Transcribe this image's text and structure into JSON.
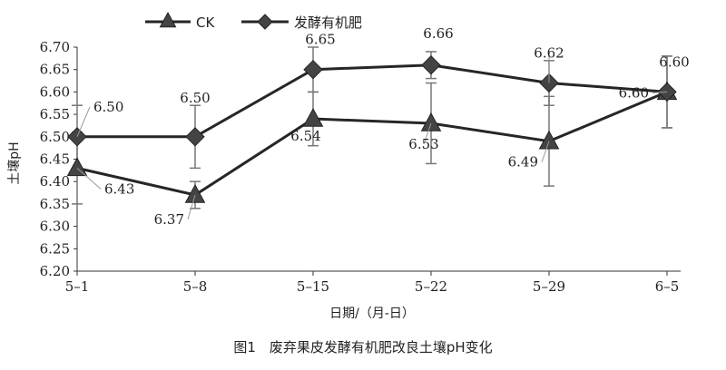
{
  "chart_data": {
    "type": "line",
    "caption": "图1　废弃果皮发酵有机肥改良土壤pH变化",
    "xlabel": "日期/（月-日）",
    "ylabel": "土壤pH",
    "categories": [
      "5–1",
      "5–8",
      "5–15",
      "5–22",
      "5–29",
      "6–5"
    ],
    "ylim": [
      6.2,
      6.7
    ],
    "yticks": [
      "6.20",
      "6.25",
      "6.30",
      "6.35",
      "6.40",
      "6.45",
      "6.50",
      "6.55",
      "6.60",
      "6.65",
      "6.70"
    ],
    "grid": false,
    "legend_position": "top-left",
    "series": [
      {
        "name": "CK",
        "marker": "triangle",
        "values": [
          6.43,
          6.37,
          6.54,
          6.53,
          6.49,
          6.6
        ],
        "labels": [
          "6.43",
          "6.37",
          "6.54",
          "6.53",
          "6.49",
          "6.60"
        ],
        "errors": [
          0.08,
          0.03,
          0.06,
          0.09,
          0.1,
          0.08
        ]
      },
      {
        "name": "发酵有机肥",
        "marker": "diamond",
        "values": [
          6.5,
          6.5,
          6.65,
          6.66,
          6.62,
          6.6
        ],
        "labels": [
          "6.50",
          "6.50",
          "6.65",
          "6.66",
          "6.62",
          "6.60"
        ],
        "errors": [
          0.07,
          0.07,
          0.05,
          0.03,
          0.05,
          0.08
        ]
      }
    ]
  },
  "colors": {
    "line": "#262626",
    "marker": "#444444",
    "errorbar": "#777777"
  }
}
